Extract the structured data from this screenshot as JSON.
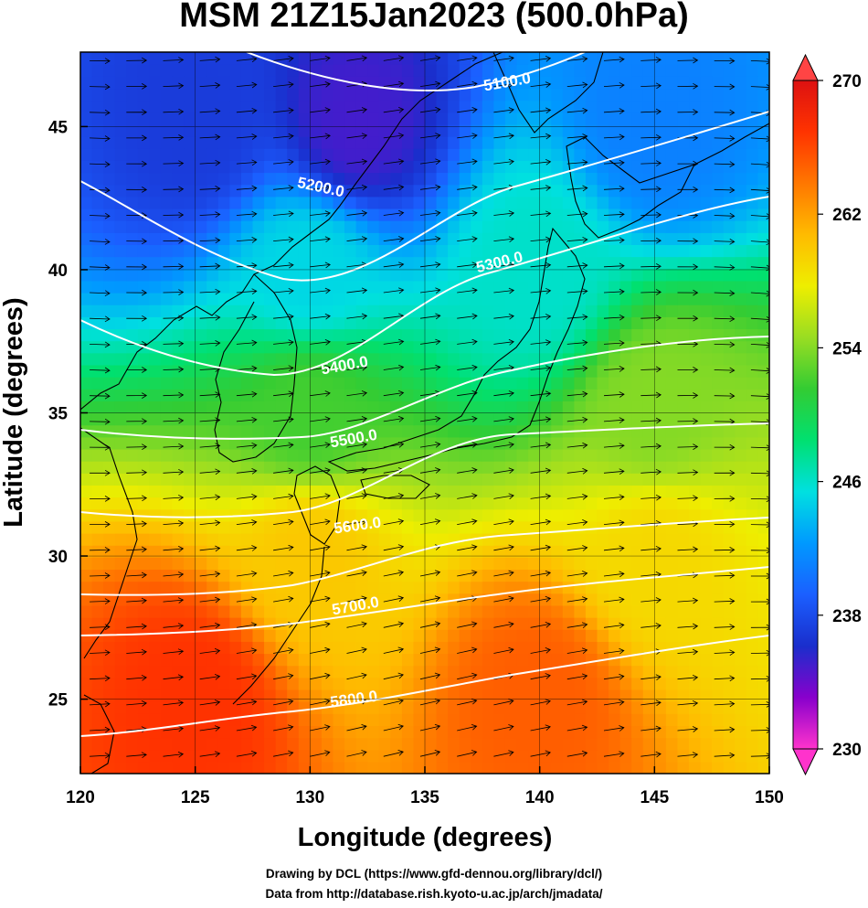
{
  "title": "MSM 21Z15Jan2023 (500.0hPa)",
  "x_axis": {
    "label": "Longitude (degrees)",
    "ticks": [
      "120",
      "125",
      "130",
      "135",
      "140",
      "145",
      "150"
    ],
    "range": [
      120,
      150
    ]
  },
  "y_axis": {
    "label": "Latitude  (degrees)",
    "ticks": [
      "25",
      "30",
      "35",
      "40",
      "45"
    ],
    "range": [
      22.4,
      47.6
    ]
  },
  "colorbar": {
    "ticks": [
      "270",
      "262",
      "254",
      "246",
      "238",
      "230"
    ],
    "range": [
      230,
      270
    ],
    "colors": [
      "#ff33cc",
      "#8800cc",
      "#1a2ecc",
      "#1b5fff",
      "#0099ff",
      "#00e0e0",
      "#00e070",
      "#33cc33",
      "#99dd22",
      "#eeee00",
      "#ffbb00",
      "#ff7700",
      "#ff3300",
      "#dd1111"
    ]
  },
  "contours": {
    "labels": [
      "5100.0",
      "5200.0",
      "5300.0",
      "5400.0",
      "5500.0",
      "5600.0",
      "5700.0",
      "5800.0"
    ]
  },
  "credits": [
    "Drawing by DCL (https://www.gfd-dennou.org/library/dcl/)",
    "Data from http://database.rish.kyoto-u.ac.jp/arch/jmadata/"
  ],
  "chart_data": {
    "type": "heatmap",
    "title": "MSM 21Z15Jan2023 (500.0hPa)",
    "xlabel": "Longitude (degrees)",
    "ylabel": "Latitude  (degrees)",
    "xlim": [
      120,
      150
    ],
    "ylim": [
      22.4,
      47.6
    ],
    "colorbar_range": [
      230,
      270
    ],
    "shaded_field_samples": [
      {
        "lon": 125,
        "lat": 45,
        "value": 237
      },
      {
        "lon": 132,
        "lat": 45,
        "value": 235
      },
      {
        "lon": 145,
        "lat": 45,
        "value": 241
      },
      {
        "lon": 130,
        "lat": 40,
        "value": 245
      },
      {
        "lon": 140,
        "lat": 40,
        "value": 246
      },
      {
        "lon": 130,
        "lat": 35,
        "value": 252
      },
      {
        "lon": 145,
        "lat": 35,
        "value": 254
      },
      {
        "lon": 130,
        "lat": 30,
        "value": 260
      },
      {
        "lon": 145,
        "lat": 30,
        "value": 259
      },
      {
        "lon": 125,
        "lat": 25,
        "value": 267
      },
      {
        "lon": 140,
        "lat": 25,
        "value": 265
      }
    ],
    "contour_levels": [
      5100,
      5200,
      5300,
      5400,
      5500,
      5600,
      5700,
      5800
    ],
    "wind_vectors": "westerly streamlines over whole domain",
    "grid": true
  }
}
